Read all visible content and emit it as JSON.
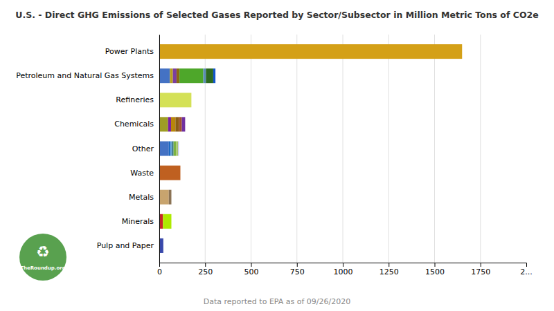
{
  "chart_data": {
    "type": "bar",
    "orientation": "horizontal",
    "stacked": true,
    "title": "U.S. - Direct GHG Emissions of Selected Gases Reported by Sector/Subsector in Million Metric Tons of CO2e",
    "categories": [
      "Power Plants",
      "Petroleum and Natural Gas Systems",
      "Refineries",
      "Chemicals",
      "Other",
      "Waste",
      "Metals",
      "Minerals",
      "Pulp and Paper"
    ],
    "series": [
      {
        "values": [
          1650,
          58,
          175,
          48,
          52,
          115,
          52,
          20,
          22
        ],
        "colors": [
          "#D4A017",
          "#4472C4",
          "#D4E157",
          "#9E9D24",
          "#4472C4",
          "#BF6020",
          "#C8A46E",
          "#C62828",
          "#3949AB"
        ]
      },
      {
        "values": [
          null,
          16,
          null,
          16,
          8,
          null,
          14,
          46,
          null
        ],
        "colors": [
          null,
          "#B8A020",
          null,
          "#7B1FA2",
          "#1565C0",
          null,
          "#8B7355",
          "#AEEA00",
          null
        ]
      },
      {
        "values": [
          null,
          20,
          null,
          24,
          8,
          null,
          null,
          null,
          null
        ],
        "colors": [
          null,
          "#7B3FA0",
          null,
          "#B8860B",
          "#6FA8DC",
          null,
          null,
          null,
          null
        ]
      },
      {
        "values": [
          null,
          16,
          null,
          20,
          10,
          null,
          null,
          null,
          null
        ],
        "colors": [
          null,
          "#8B6914",
          null,
          "#8B5E14",
          "#45818E",
          null,
          null,
          null,
          null
        ]
      },
      {
        "values": [
          null,
          130,
          null,
          15,
          14,
          null,
          null,
          null,
          null
        ],
        "colors": [
          null,
          "#4EA72A",
          null,
          "#A0522D",
          "#7CB342",
          null,
          null,
          null,
          null
        ]
      },
      {
        "values": [
          null,
          14,
          null,
          18,
          10,
          null,
          null,
          null,
          null
        ],
        "colors": [
          null,
          "#5B8DB8",
          null,
          "#7030A0",
          "#A5C46C",
          null,
          null,
          null,
          null
        ]
      },
      {
        "values": [
          null,
          40,
          null,
          null,
          5,
          null,
          null,
          null,
          null
        ],
        "colors": [
          null,
          "#2D6A1F",
          null,
          null,
          "#C5CAE9",
          null,
          null,
          null,
          null
        ]
      },
      {
        "values": [
          null,
          12,
          null,
          null,
          null,
          null,
          null,
          null,
          null
        ],
        "colors": [
          null,
          "#1155CC",
          null,
          null,
          null,
          null,
          null,
          null,
          null
        ]
      }
    ],
    "xlim": [
      0,
      2000
    ],
    "xticks": [
      0,
      250,
      500,
      750,
      1000,
      1250,
      1500,
      1750
    ],
    "grid": true,
    "annotations": [
      {
        "text": "2..."
      },
      {
        "text": "Data reported to EPA as of 09/26/2020"
      },
      {
        "text": "♻"
      },
      {
        "text": "TheRoundup.org"
      }
    ]
  }
}
